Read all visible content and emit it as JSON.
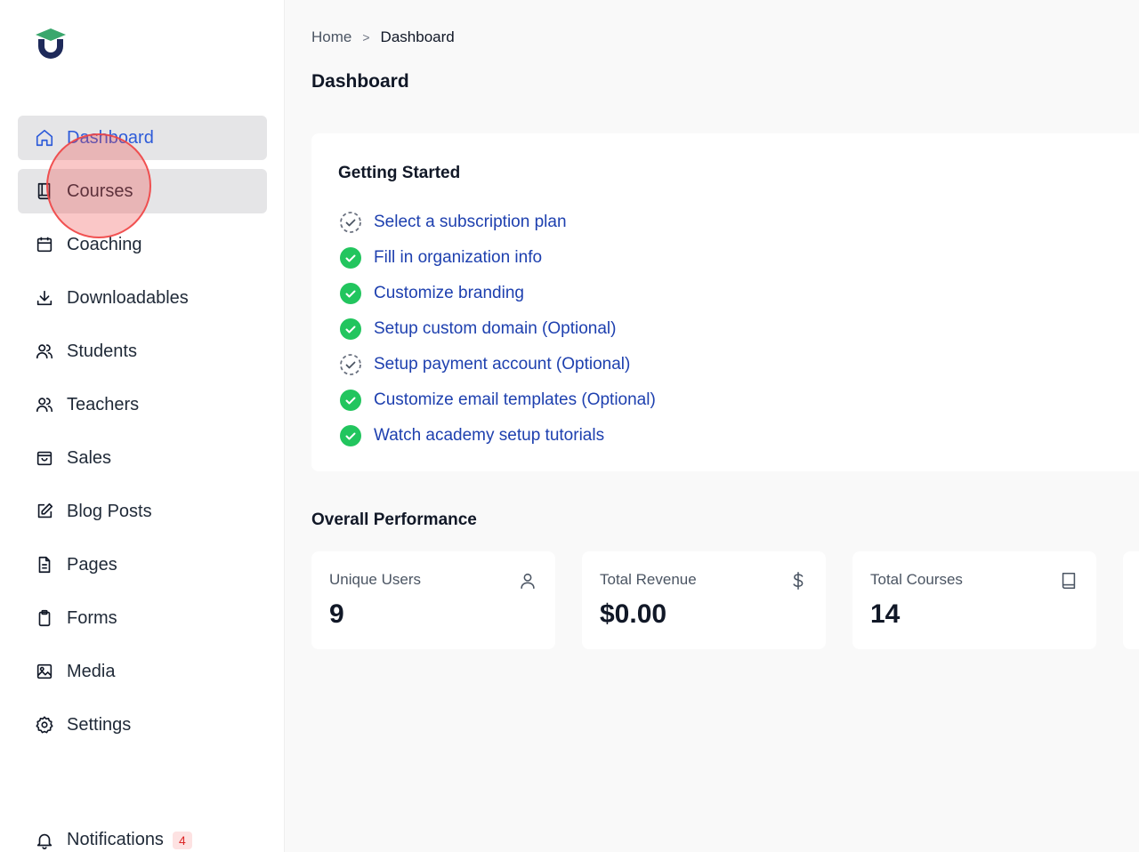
{
  "sidebar": {
    "items": [
      {
        "label": "Dashboard",
        "icon": "home-icon"
      },
      {
        "label": "Courses",
        "icon": "book-icon"
      },
      {
        "label": "Coaching",
        "icon": "calendar-icon"
      },
      {
        "label": "Downloadables",
        "icon": "download-icon"
      },
      {
        "label": "Students",
        "icon": "users-icon"
      },
      {
        "label": "Teachers",
        "icon": "users-icon"
      },
      {
        "label": "Sales",
        "icon": "shopping-bag-icon"
      },
      {
        "label": "Blog Posts",
        "icon": "edit-icon"
      },
      {
        "label": "Pages",
        "icon": "document-icon"
      },
      {
        "label": "Forms",
        "icon": "clipboard-icon"
      },
      {
        "label": "Media",
        "icon": "image-icon"
      },
      {
        "label": "Settings",
        "icon": "gear-icon"
      }
    ],
    "notifications": {
      "label": "Notifications",
      "count": "4",
      "icon": "bell-icon"
    }
  },
  "breadcrumb": {
    "home": "Home",
    "separator": ">",
    "current": "Dashboard"
  },
  "page_title": "Dashboard",
  "getting_started": {
    "title": "Getting Started",
    "steps": [
      {
        "label": "Select a subscription plan",
        "done": false
      },
      {
        "label": "Fill in organization info",
        "done": true
      },
      {
        "label": "Customize branding",
        "done": true
      },
      {
        "label": "Setup custom domain (Optional)",
        "done": true
      },
      {
        "label": "Setup payment account (Optional)",
        "done": false
      },
      {
        "label": "Customize email templates (Optional)",
        "done": true
      },
      {
        "label": "Watch academy setup tutorials",
        "done": true
      }
    ]
  },
  "performance": {
    "title": "Overall Performance",
    "stats": [
      {
        "label": "Unique Users",
        "value": "9",
        "icon": "user-icon"
      },
      {
        "label": "Total Revenue",
        "value": "$0.00",
        "icon": "dollar-icon"
      },
      {
        "label": "Total Courses",
        "value": "14",
        "icon": "book-icon"
      }
    ]
  },
  "colors": {
    "accent": "#2d5bd9",
    "link": "#1e40af",
    "success": "#22c55e",
    "logo_green": "#3aa76d",
    "logo_navy": "#1e2a5a",
    "badge_bg": "#fde2e2",
    "badge_text": "#dc2626"
  }
}
